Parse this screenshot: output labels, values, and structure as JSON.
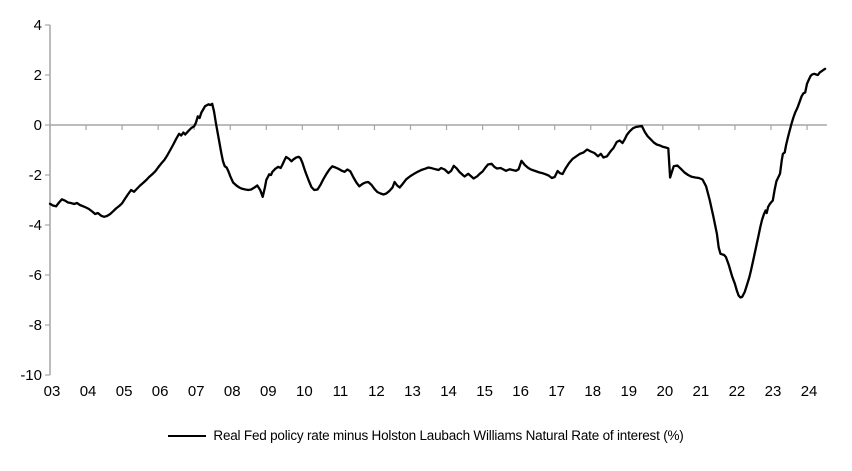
{
  "legend": {
    "label": "Real Fed policy rate minus Holston Laubach Williams Natural Rate of interest (%)"
  },
  "colors": {
    "background": "#ffffff",
    "line": "#000000",
    "axis": "#a6a6a6",
    "text": "#000000"
  },
  "chart_data": {
    "type": "line",
    "title": "",
    "xlabel": "",
    "ylabel": "",
    "grid": "zero-line-only",
    "legend_position": "bottom-center",
    "x_axis": {
      "tick_labels": [
        "03",
        "04",
        "05",
        "06",
        "07",
        "08",
        "09",
        "10",
        "11",
        "12",
        "13",
        "14",
        "15",
        "16",
        "17",
        "18",
        "19",
        "20",
        "21",
        "22",
        "23",
        "24"
      ],
      "first_year": 2003,
      "axis_end_year": 2024.55
    },
    "y_axis": {
      "tick_labels": [
        "4",
        "2",
        "0",
        "-2",
        "-4",
        "-6",
        "-8",
        "-10"
      ],
      "tick_values": [
        4,
        2,
        0,
        -2,
        -4,
        -6,
        -8,
        -10
      ],
      "min": -10,
      "max": 4
    },
    "series": [
      {
        "name": "Real Fed policy rate minus Holston Laubach Williams Natural Rate of interest (%)",
        "color": "#000000",
        "points": [
          [
            2003.0,
            -3.15
          ],
          [
            2003.08,
            -3.22
          ],
          [
            2003.17,
            -3.25
          ],
          [
            2003.25,
            -3.1
          ],
          [
            2003.33,
            -2.97
          ],
          [
            2003.42,
            -3.03
          ],
          [
            2003.5,
            -3.1
          ],
          [
            2003.58,
            -3.12
          ],
          [
            2003.67,
            -3.16
          ],
          [
            2003.75,
            -3.12
          ],
          [
            2003.83,
            -3.2
          ],
          [
            2003.92,
            -3.25
          ],
          [
            2004.0,
            -3.3
          ],
          [
            2004.08,
            -3.36
          ],
          [
            2004.17,
            -3.46
          ],
          [
            2004.25,
            -3.56
          ],
          [
            2004.33,
            -3.52
          ],
          [
            2004.42,
            -3.63
          ],
          [
            2004.5,
            -3.67
          ],
          [
            2004.58,
            -3.64
          ],
          [
            2004.67,
            -3.56
          ],
          [
            2004.75,
            -3.45
          ],
          [
            2004.83,
            -3.34
          ],
          [
            2004.92,
            -3.24
          ],
          [
            2005.0,
            -3.13
          ],
          [
            2005.08,
            -2.95
          ],
          [
            2005.17,
            -2.76
          ],
          [
            2005.25,
            -2.6
          ],
          [
            2005.33,
            -2.67
          ],
          [
            2005.42,
            -2.54
          ],
          [
            2005.5,
            -2.42
          ],
          [
            2005.58,
            -2.32
          ],
          [
            2005.67,
            -2.2
          ],
          [
            2005.75,
            -2.08
          ],
          [
            2005.83,
            -1.98
          ],
          [
            2005.92,
            -1.85
          ],
          [
            2006.0,
            -1.7
          ],
          [
            2006.08,
            -1.55
          ],
          [
            2006.17,
            -1.4
          ],
          [
            2006.25,
            -1.22
          ],
          [
            2006.33,
            -1.02
          ],
          [
            2006.42,
            -0.78
          ],
          [
            2006.5,
            -0.55
          ],
          [
            2006.58,
            -0.35
          ],
          [
            2006.64,
            -0.42
          ],
          [
            2006.7,
            -0.3
          ],
          [
            2006.75,
            -0.38
          ],
          [
            2006.83,
            -0.25
          ],
          [
            2006.92,
            -0.12
          ],
          [
            2007.0,
            -0.05
          ],
          [
            2007.05,
            0.1
          ],
          [
            2007.1,
            0.35
          ],
          [
            2007.15,
            0.28
          ],
          [
            2007.2,
            0.5
          ],
          [
            2007.25,
            0.62
          ],
          [
            2007.3,
            0.75
          ],
          [
            2007.4,
            0.83
          ],
          [
            2007.45,
            0.8
          ],
          [
            2007.5,
            0.85
          ],
          [
            2007.55,
            0.55
          ],
          [
            2007.6,
            0.1
          ],
          [
            2007.65,
            -0.3
          ],
          [
            2007.7,
            -0.7
          ],
          [
            2007.75,
            -1.1
          ],
          [
            2007.8,
            -1.45
          ],
          [
            2007.85,
            -1.65
          ],
          [
            2007.9,
            -1.7
          ],
          [
            2007.95,
            -1.85
          ],
          [
            2008.0,
            -2.05
          ],
          [
            2008.08,
            -2.3
          ],
          [
            2008.17,
            -2.42
          ],
          [
            2008.25,
            -2.5
          ],
          [
            2008.33,
            -2.55
          ],
          [
            2008.42,
            -2.58
          ],
          [
            2008.5,
            -2.6
          ],
          [
            2008.58,
            -2.58
          ],
          [
            2008.67,
            -2.5
          ],
          [
            2008.75,
            -2.42
          ],
          [
            2008.83,
            -2.6
          ],
          [
            2008.9,
            -2.87
          ],
          [
            2008.96,
            -2.5
          ],
          [
            2009.0,
            -2.2
          ],
          [
            2009.08,
            -1.97
          ],
          [
            2009.13,
            -2.0
          ],
          [
            2009.17,
            -1.87
          ],
          [
            2009.25,
            -1.75
          ],
          [
            2009.33,
            -1.67
          ],
          [
            2009.4,
            -1.72
          ],
          [
            2009.45,
            -1.58
          ],
          [
            2009.5,
            -1.42
          ],
          [
            2009.55,
            -1.28
          ],
          [
            2009.63,
            -1.35
          ],
          [
            2009.7,
            -1.45
          ],
          [
            2009.75,
            -1.38
          ],
          [
            2009.83,
            -1.3
          ],
          [
            2009.9,
            -1.27
          ],
          [
            2009.95,
            -1.33
          ],
          [
            2010.0,
            -1.5
          ],
          [
            2010.08,
            -1.85
          ],
          [
            2010.17,
            -2.2
          ],
          [
            2010.25,
            -2.48
          ],
          [
            2010.33,
            -2.6
          ],
          [
            2010.42,
            -2.58
          ],
          [
            2010.5,
            -2.4
          ],
          [
            2010.58,
            -2.17
          ],
          [
            2010.67,
            -1.95
          ],
          [
            2010.75,
            -1.78
          ],
          [
            2010.83,
            -1.65
          ],
          [
            2010.92,
            -1.7
          ],
          [
            2011.0,
            -1.75
          ],
          [
            2011.08,
            -1.82
          ],
          [
            2011.17,
            -1.87
          ],
          [
            2011.25,
            -1.78
          ],
          [
            2011.33,
            -1.85
          ],
          [
            2011.42,
            -2.1
          ],
          [
            2011.5,
            -2.3
          ],
          [
            2011.58,
            -2.45
          ],
          [
            2011.67,
            -2.35
          ],
          [
            2011.75,
            -2.3
          ],
          [
            2011.83,
            -2.28
          ],
          [
            2011.92,
            -2.4
          ],
          [
            2012.0,
            -2.55
          ],
          [
            2012.08,
            -2.68
          ],
          [
            2012.17,
            -2.74
          ],
          [
            2012.25,
            -2.78
          ],
          [
            2012.33,
            -2.74
          ],
          [
            2012.42,
            -2.63
          ],
          [
            2012.5,
            -2.5
          ],
          [
            2012.56,
            -2.28
          ],
          [
            2012.63,
            -2.42
          ],
          [
            2012.7,
            -2.5
          ],
          [
            2012.78,
            -2.36
          ],
          [
            2012.88,
            -2.17
          ],
          [
            2013.0,
            -2.04
          ],
          [
            2013.1,
            -1.95
          ],
          [
            2013.2,
            -1.87
          ],
          [
            2013.3,
            -1.8
          ],
          [
            2013.4,
            -1.75
          ],
          [
            2013.5,
            -1.7
          ],
          [
            2013.6,
            -1.73
          ],
          [
            2013.7,
            -1.77
          ],
          [
            2013.78,
            -1.8
          ],
          [
            2013.85,
            -1.72
          ],
          [
            2013.95,
            -1.78
          ],
          [
            2014.05,
            -1.92
          ],
          [
            2014.13,
            -1.83
          ],
          [
            2014.2,
            -1.63
          ],
          [
            2014.28,
            -1.73
          ],
          [
            2014.36,
            -1.88
          ],
          [
            2014.45,
            -2.0
          ],
          [
            2014.5,
            -2.06
          ],
          [
            2014.6,
            -1.95
          ],
          [
            2014.68,
            -2.05
          ],
          [
            2014.75,
            -2.14
          ],
          [
            2014.85,
            -2.05
          ],
          [
            2014.92,
            -1.95
          ],
          [
            2015.0,
            -1.86
          ],
          [
            2015.08,
            -1.7
          ],
          [
            2015.15,
            -1.58
          ],
          [
            2015.25,
            -1.55
          ],
          [
            2015.33,
            -1.68
          ],
          [
            2015.4,
            -1.74
          ],
          [
            2015.5,
            -1.72
          ],
          [
            2015.58,
            -1.78
          ],
          [
            2015.65,
            -1.83
          ],
          [
            2015.75,
            -1.77
          ],
          [
            2015.83,
            -1.8
          ],
          [
            2015.92,
            -1.83
          ],
          [
            2016.0,
            -1.77
          ],
          [
            2016.08,
            -1.43
          ],
          [
            2016.17,
            -1.6
          ],
          [
            2016.25,
            -1.7
          ],
          [
            2016.33,
            -1.77
          ],
          [
            2016.42,
            -1.82
          ],
          [
            2016.5,
            -1.86
          ],
          [
            2016.58,
            -1.9
          ],
          [
            2016.67,
            -1.93
          ],
          [
            2016.75,
            -1.97
          ],
          [
            2016.83,
            -2.02
          ],
          [
            2016.92,
            -2.12
          ],
          [
            2017.0,
            -2.08
          ],
          [
            2017.08,
            -1.84
          ],
          [
            2017.15,
            -1.93
          ],
          [
            2017.22,
            -1.96
          ],
          [
            2017.3,
            -1.74
          ],
          [
            2017.4,
            -1.52
          ],
          [
            2017.5,
            -1.35
          ],
          [
            2017.6,
            -1.25
          ],
          [
            2017.7,
            -1.15
          ],
          [
            2017.8,
            -1.1
          ],
          [
            2017.9,
            -0.98
          ],
          [
            2018.0,
            -1.06
          ],
          [
            2018.1,
            -1.12
          ],
          [
            2018.2,
            -1.25
          ],
          [
            2018.28,
            -1.15
          ],
          [
            2018.35,
            -1.3
          ],
          [
            2018.45,
            -1.25
          ],
          [
            2018.55,
            -1.05
          ],
          [
            2018.63,
            -0.92
          ],
          [
            2018.72,
            -0.68
          ],
          [
            2018.8,
            -0.62
          ],
          [
            2018.88,
            -0.72
          ],
          [
            2018.95,
            -0.55
          ],
          [
            2019.0,
            -0.4
          ],
          [
            2019.08,
            -0.25
          ],
          [
            2019.17,
            -0.13
          ],
          [
            2019.25,
            -0.08
          ],
          [
            2019.33,
            -0.06
          ],
          [
            2019.42,
            -0.04
          ],
          [
            2019.5,
            -0.28
          ],
          [
            2019.58,
            -0.45
          ],
          [
            2019.65,
            -0.55
          ],
          [
            2019.75,
            -0.7
          ],
          [
            2019.83,
            -0.78
          ],
          [
            2019.92,
            -0.82
          ],
          [
            2020.0,
            -0.87
          ],
          [
            2020.08,
            -0.9
          ],
          [
            2020.15,
            -0.93
          ],
          [
            2020.2,
            -2.1
          ],
          [
            2020.3,
            -1.65
          ],
          [
            2020.4,
            -1.62
          ],
          [
            2020.5,
            -1.75
          ],
          [
            2020.6,
            -1.9
          ],
          [
            2020.7,
            -2.0
          ],
          [
            2020.8,
            -2.07
          ],
          [
            2020.9,
            -2.1
          ],
          [
            2021.0,
            -2.12
          ],
          [
            2021.1,
            -2.18
          ],
          [
            2021.2,
            -2.45
          ],
          [
            2021.3,
            -3.0
          ],
          [
            2021.4,
            -3.65
          ],
          [
            2021.5,
            -4.35
          ],
          [
            2021.55,
            -4.9
          ],
          [
            2021.6,
            -5.15
          ],
          [
            2021.7,
            -5.2
          ],
          [
            2021.75,
            -5.28
          ],
          [
            2021.83,
            -5.6
          ],
          [
            2021.92,
            -6.05
          ],
          [
            2022.0,
            -6.35
          ],
          [
            2022.05,
            -6.62
          ],
          [
            2022.1,
            -6.82
          ],
          [
            2022.15,
            -6.9
          ],
          [
            2022.2,
            -6.87
          ],
          [
            2022.27,
            -6.68
          ],
          [
            2022.33,
            -6.42
          ],
          [
            2022.4,
            -6.08
          ],
          [
            2022.45,
            -5.78
          ],
          [
            2022.5,
            -5.45
          ],
          [
            2022.55,
            -5.12
          ],
          [
            2022.6,
            -4.78
          ],
          [
            2022.65,
            -4.45
          ],
          [
            2022.7,
            -4.1
          ],
          [
            2022.75,
            -3.8
          ],
          [
            2022.8,
            -3.58
          ],
          [
            2022.85,
            -3.42
          ],
          [
            2022.88,
            -3.52
          ],
          [
            2022.92,
            -3.28
          ],
          [
            2022.96,
            -3.17
          ],
          [
            2023.0,
            -3.1
          ],
          [
            2023.05,
            -3.02
          ],
          [
            2023.1,
            -2.6
          ],
          [
            2023.15,
            -2.25
          ],
          [
            2023.2,
            -2.1
          ],
          [
            2023.25,
            -1.95
          ],
          [
            2023.3,
            -1.4
          ],
          [
            2023.33,
            -1.15
          ],
          [
            2023.38,
            -1.1
          ],
          [
            2023.42,
            -0.8
          ],
          [
            2023.47,
            -0.5
          ],
          [
            2023.52,
            -0.22
          ],
          [
            2023.57,
            0.05
          ],
          [
            2023.62,
            0.3
          ],
          [
            2023.67,
            0.5
          ],
          [
            2023.72,
            0.65
          ],
          [
            2023.75,
            0.75
          ],
          [
            2023.8,
            0.95
          ],
          [
            2023.85,
            1.15
          ],
          [
            2023.9,
            1.27
          ],
          [
            2023.95,
            1.3
          ],
          [
            2024.0,
            1.65
          ],
          [
            2024.05,
            1.82
          ],
          [
            2024.1,
            1.97
          ],
          [
            2024.15,
            2.03
          ],
          [
            2024.2,
            2.05
          ],
          [
            2024.25,
            2.02
          ],
          [
            2024.3,
            2.0
          ],
          [
            2024.35,
            2.1
          ],
          [
            2024.4,
            2.15
          ],
          [
            2024.45,
            2.2
          ],
          [
            2024.5,
            2.25
          ]
        ]
      }
    ]
  }
}
